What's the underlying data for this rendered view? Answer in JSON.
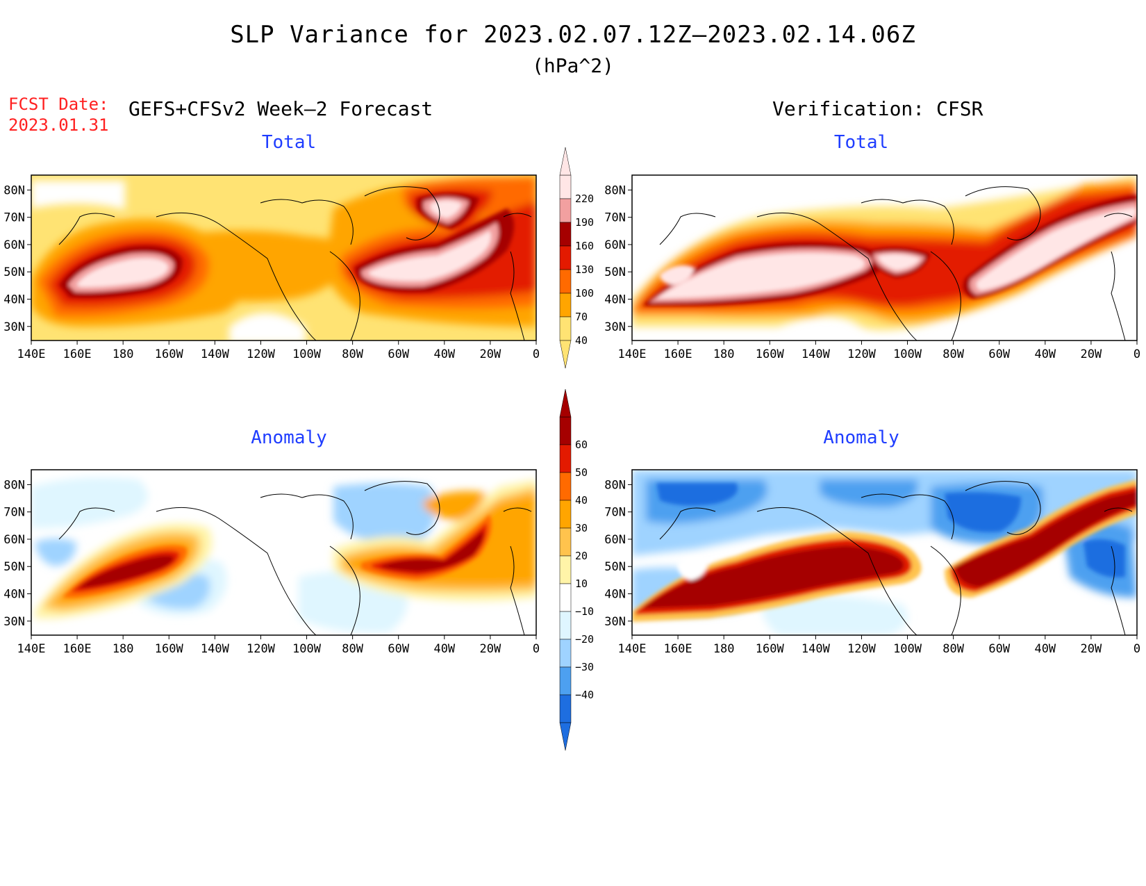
{
  "title": "SLP Variance for 2023.02.07.12Z–2023.02.14.06Z",
  "units": "(hPa^2)",
  "fcst_date": {
    "label": "FCST Date:",
    "value": "2023.01.31"
  },
  "left_header": "GEFS+CFSv2 Week–2 Forecast",
  "right_header": "Verification: CFSR",
  "panels": {
    "top_left": {
      "title": "Total"
    },
    "top_right": {
      "title": "Total"
    },
    "bottom_left": {
      "title": "Anomaly"
    },
    "bottom_right": {
      "title": "Anomaly"
    }
  },
  "lat_labels": [
    "80N",
    "70N",
    "60N",
    "50N",
    "40N",
    "30N"
  ],
  "lon_labels": [
    "140E",
    "160E",
    "180",
    "160W",
    "140W",
    "120W",
    "100W",
    "80W",
    "60W",
    "40W",
    "20W",
    "0"
  ],
  "total_colorbar": {
    "levels": [
      "40",
      "70",
      "100",
      "130",
      "160",
      "190",
      "220"
    ],
    "colors": [
      "#ffe373",
      "#ffa500",
      "#ff6a00",
      "#e31a00",
      "#a50000",
      "#f2a0a0",
      "#ffe6e6"
    ]
  },
  "anomaly_colorbar": {
    "levels": [
      "60",
      "50",
      "40",
      "30",
      "20",
      "10",
      "−10",
      "−20",
      "−30",
      "−40"
    ],
    "colors": [
      "#a50000",
      "#e31a00",
      "#ff6a00",
      "#ffa500",
      "#ffc34d",
      "#fff4a8",
      "#ffffff",
      "#dff6ff",
      "#9fd3ff",
      "#4da0f0",
      "#1e6ee0"
    ]
  }
}
